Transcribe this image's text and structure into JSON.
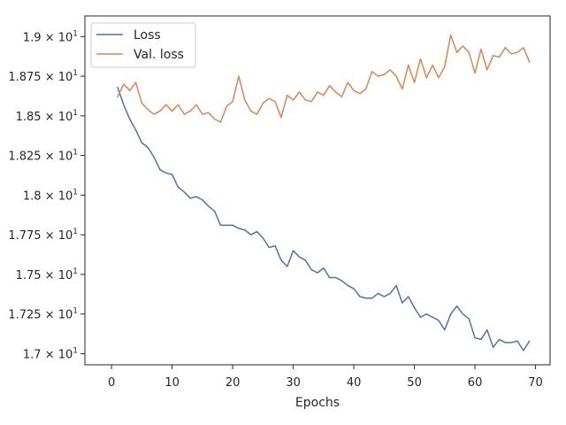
{
  "chart_data": {
    "type": "line",
    "xlabel": "Epochs",
    "ylabel": "",
    "xlim": [
      -4.4,
      72.4
    ],
    "ylim": [
      16.93,
      19.13
    ],
    "x_ticks": [
      0,
      10,
      20,
      30,
      40,
      50,
      60,
      70
    ],
    "x_tick_labels": [
      "0",
      "10",
      "20",
      "30",
      "40",
      "50",
      "60",
      "70"
    ],
    "y_ticks": [
      17.0,
      17.25,
      17.5,
      17.75,
      18.0,
      18.25,
      18.5,
      18.75,
      19.0
    ],
    "y_tick_mantissas": [
      "1.7",
      "1.725",
      "1.75",
      "1.775",
      "1.8",
      "1.825",
      "1.85",
      "1.875",
      "1.9"
    ],
    "y_tick_base": "× 10",
    "y_tick_exponent": "1",
    "legend_position": "top-left",
    "grid": false,
    "x": [
      1,
      2,
      3,
      4,
      5,
      6,
      7,
      8,
      9,
      10,
      11,
      12,
      13,
      14,
      15,
      16,
      17,
      18,
      19,
      20,
      21,
      22,
      23,
      24,
      25,
      26,
      27,
      28,
      29,
      30,
      31,
      32,
      33,
      34,
      35,
      36,
      37,
      38,
      39,
      40,
      41,
      42,
      43,
      44,
      45,
      46,
      47,
      48,
      49,
      50,
      51,
      52,
      53,
      54,
      55,
      56,
      57,
      58,
      59,
      60,
      61,
      62,
      63,
      64,
      65,
      66,
      67,
      68,
      69
    ],
    "series": [
      {
        "name": "Loss",
        "color": "#4c72b0",
        "values": [
          18.68,
          18.57,
          18.48,
          18.41,
          18.33,
          18.3,
          18.24,
          18.16,
          18.14,
          18.13,
          18.05,
          18.02,
          17.98,
          17.99,
          17.97,
          17.93,
          17.9,
          17.81,
          17.81,
          17.81,
          17.79,
          17.78,
          17.75,
          17.77,
          17.73,
          17.67,
          17.68,
          17.59,
          17.55,
          17.65,
          17.61,
          17.59,
          17.53,
          17.51,
          17.54,
          17.48,
          17.48,
          17.46,
          17.43,
          17.41,
          17.36,
          17.35,
          17.35,
          17.38,
          17.36,
          17.38,
          17.43,
          17.32,
          17.36,
          17.29,
          17.23,
          17.25,
          17.23,
          17.21,
          17.15,
          17.25,
          17.3,
          17.25,
          17.22,
          17.1,
          17.09,
          17.15,
          17.04,
          17.09,
          17.07,
          17.07,
          17.08,
          17.02,
          17.08
        ]
      },
      {
        "name": "Val. loss",
        "color": "#dd8452",
        "values": [
          18.62,
          18.7,
          18.66,
          18.71,
          18.58,
          18.54,
          18.51,
          18.53,
          18.57,
          18.53,
          18.57,
          18.51,
          18.53,
          18.57,
          18.51,
          18.52,
          18.48,
          18.46,
          18.56,
          18.59,
          18.75,
          18.6,
          18.53,
          18.51,
          18.58,
          18.61,
          18.59,
          18.49,
          18.63,
          18.6,
          18.65,
          18.6,
          18.59,
          18.65,
          18.63,
          18.69,
          18.65,
          18.62,
          18.71,
          18.66,
          18.64,
          18.67,
          18.78,
          18.75,
          18.76,
          18.79,
          18.75,
          18.67,
          18.82,
          18.71,
          18.86,
          18.74,
          18.82,
          18.74,
          18.81,
          19.01,
          18.9,
          18.94,
          18.9,
          18.77,
          18.92,
          18.79,
          18.88,
          18.87,
          18.93,
          18.89,
          18.9,
          18.93,
          18.84
        ]
      }
    ]
  }
}
